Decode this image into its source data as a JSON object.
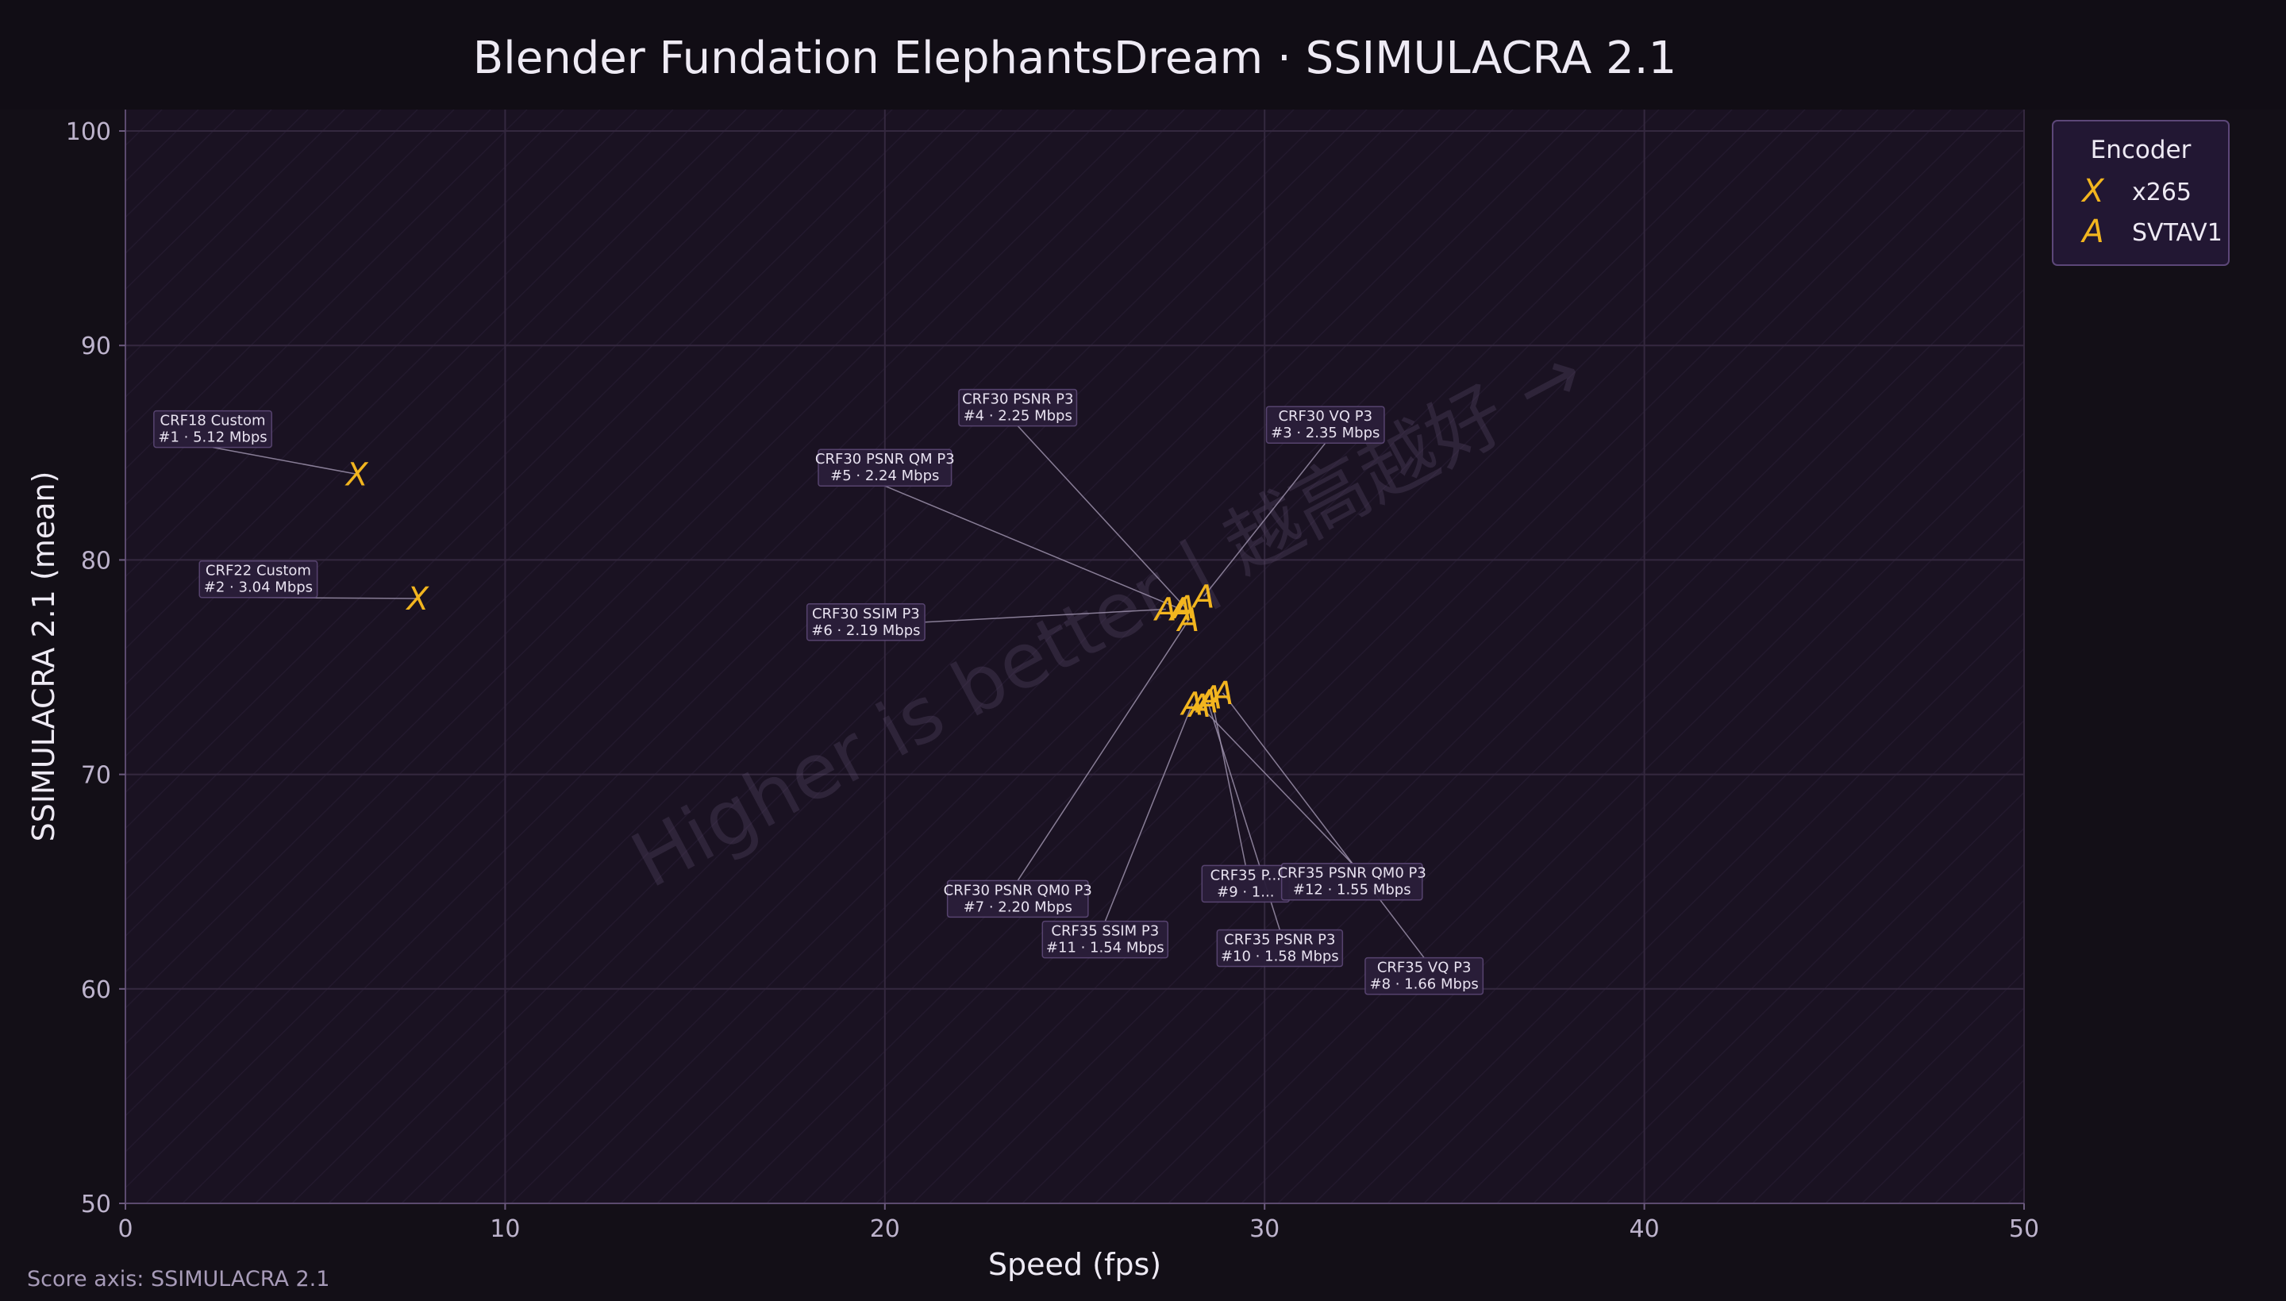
{
  "chart_data": {
    "type": "scatter",
    "title": "Blender Fundation ElephantsDream · SSIMULACRA 2.1",
    "xlabel": "Speed (fps)",
    "ylabel": "SSIMULACRA 2.1 (mean)",
    "xlim": [
      0,
      50
    ],
    "ylim": [
      50,
      101
    ],
    "xticks": [
      0,
      10,
      20,
      30,
      40,
      50
    ],
    "yticks": [
      50,
      60,
      70,
      80,
      90,
      100
    ],
    "grid": true,
    "watermark": "Higher is better | 越高越好 →",
    "footnote": "Score axis: SSIMULACRA 2.1",
    "legend": {
      "title": "Encoder",
      "position": "outside-top-right",
      "entries": [
        {
          "symbol": "X",
          "label": "x265",
          "color": "#f2b51f"
        },
        {
          "symbol": "A",
          "label": "SVTAV1",
          "color": "#f2b51f"
        }
      ]
    },
    "series": [
      {
        "name": "x265",
        "symbol": "X",
        "color": "#f2b51f",
        "points": [
          {
            "x": 6.1,
            "y": 84.0,
            "line1": "CRF18 Custom",
            "line2": "#1 · 5.12 Mbps",
            "label_x": 2.3,
            "label_y": 86.1
          },
          {
            "x": 7.7,
            "y": 78.2,
            "line1": "CRF22 Custom",
            "line2": "#2 · 3.04 Mbps",
            "label_x": 3.5,
            "label_y": 79.1
          }
        ]
      },
      {
        "name": "SVTAV1",
        "symbol": "A",
        "color": "#f2b51f",
        "points": [
          {
            "x": 28.4,
            "y": 78.3,
            "line1": "CRF30 VQ P3",
            "line2": "#3 · 2.35 Mbps",
            "label_x": 31.6,
            "label_y": 86.3
          },
          {
            "x": 27.9,
            "y": 77.8,
            "line1": "CRF30 PSNR P3",
            "line2": "#4 · 2.25 Mbps",
            "label_x": 23.5,
            "label_y": 87.1
          },
          {
            "x": 27.8,
            "y": 77.7,
            "line1": "CRF30 PSNR QM P3",
            "line2": "#5 · 2.24 Mbps",
            "label_x": 20.0,
            "label_y": 84.3
          },
          {
            "x": 27.4,
            "y": 77.7,
            "line1": "CRF30 SSIM P3",
            "line2": "#6 · 2.19 Mbps",
            "label_x": 19.5,
            "label_y": 77.1
          },
          {
            "x": 28.0,
            "y": 77.2,
            "line1": "CRF30 PSNR QM0 P3",
            "line2": "#7 · 2.20 Mbps",
            "label_x": 23.5,
            "label_y": 64.2
          },
          {
            "x": 28.9,
            "y": 73.8,
            "line1": "CRF35 VQ P3",
            "line2": "#8 · 1.66 Mbps",
            "label_x": 34.2,
            "label_y": 60.6
          },
          {
            "x": 28.6,
            "y": 73.6,
            "line1": "CRF35 P...",
            "line2": "#9 · 1...",
            "label_x": 29.5,
            "label_y": 64.9
          },
          {
            "x": 28.5,
            "y": 73.4,
            "line1": "CRF35 PSNR P3",
            "line2": "#10 · 1.58 Mbps",
            "label_x": 30.4,
            "label_y": 61.9
          },
          {
            "x": 28.1,
            "y": 73.3,
            "line1": "CRF35 SSIM P3",
            "line2": "#11 · 1.54 Mbps",
            "label_x": 25.8,
            "label_y": 62.3
          },
          {
            "x": 28.3,
            "y": 73.2,
            "line1": "CRF35 PSNR QM0 P3",
            "line2": "#12 · 1.55 Mbps",
            "label_x": 32.3,
            "label_y": 65.0
          }
        ]
      }
    ]
  }
}
